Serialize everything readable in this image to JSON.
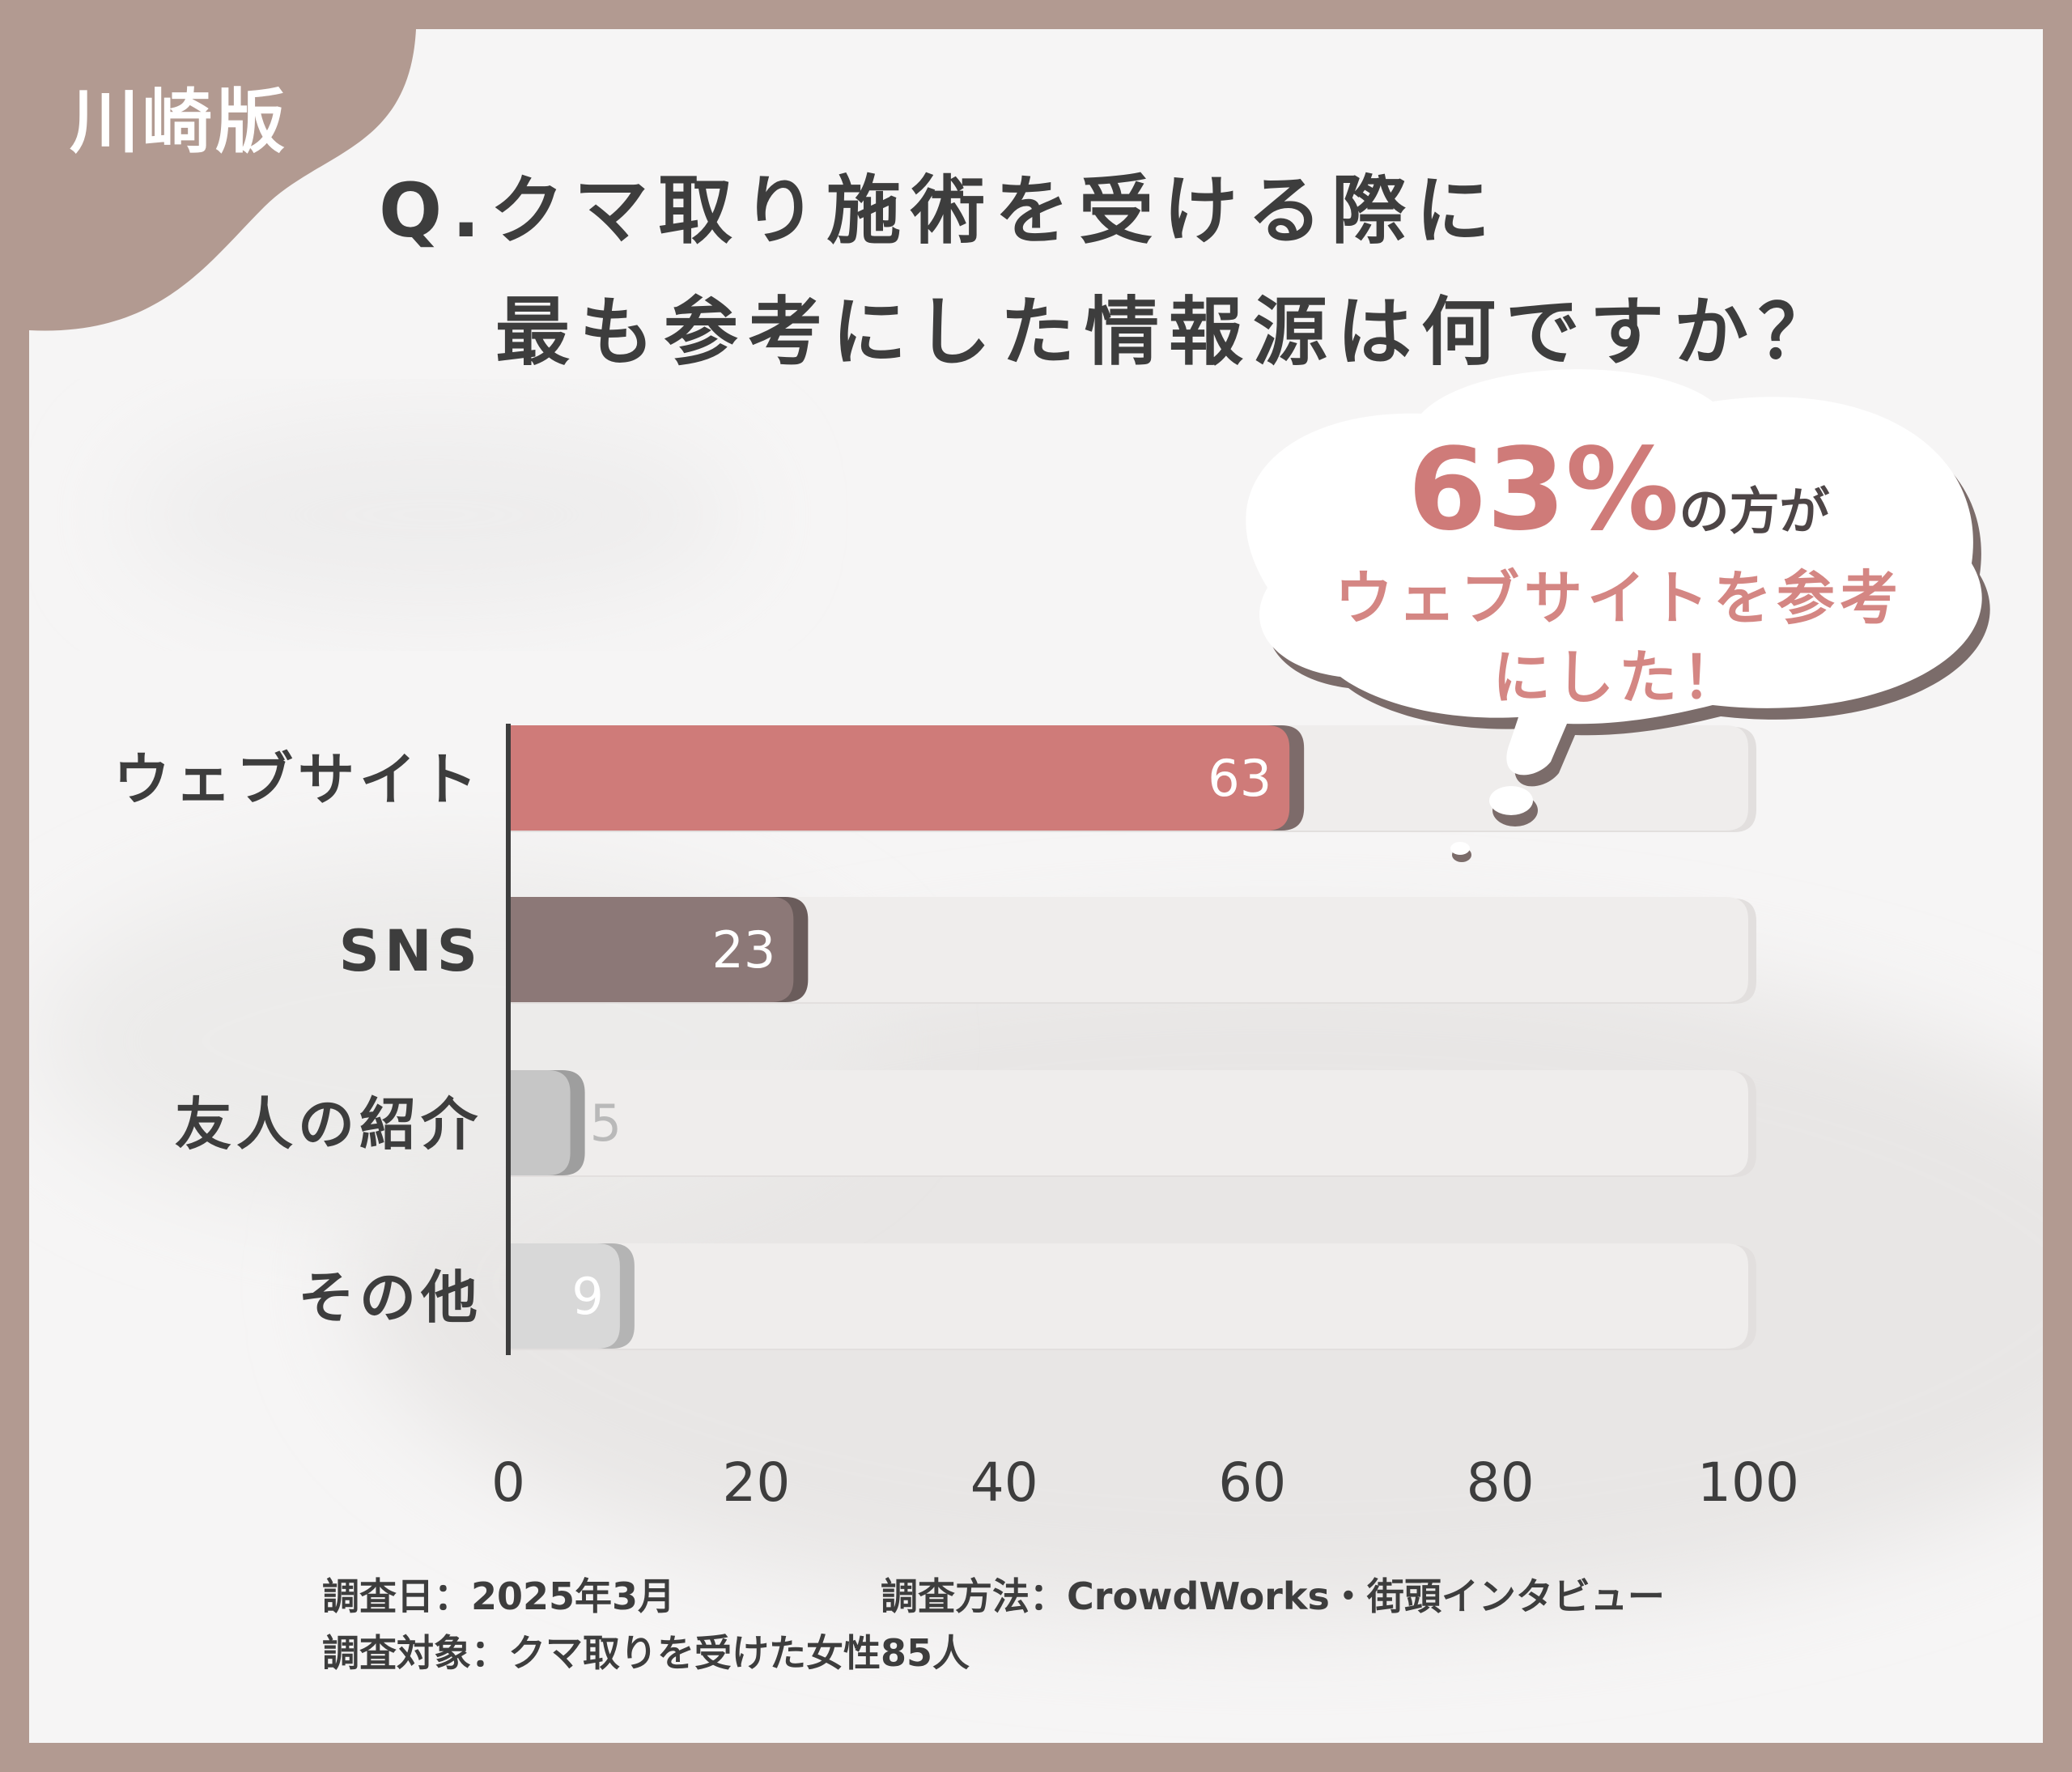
{
  "badge": {
    "label": "川崎版"
  },
  "question": {
    "line1": "Q.クマ取り施術を受ける際に",
    "line2": "最も参考にした情報源は何ですか？"
  },
  "callout": {
    "percent": "63%",
    "suffix": "の方が",
    "line2": "ウェブサイトを参考",
    "line3": "にした！"
  },
  "chart_data": {
    "type": "bar",
    "orientation": "horizontal",
    "categories": [
      "ウェブサイト",
      "SNS",
      "友人の紹介",
      "その他"
    ],
    "values": [
      63,
      23,
      5,
      9
    ],
    "xlim": [
      0,
      100
    ],
    "xticks": [
      "0",
      "20",
      "40",
      "60",
      "80",
      "100"
    ],
    "colors": [
      "#cf7b79",
      "#8c7877",
      "#c6c6c6",
      "#d8d8d8"
    ],
    "shadow_colors": [
      "#7d6b6a",
      "#6a5c5b",
      "#9e9e9e",
      "#b4b4b4"
    ],
    "label_colors": [
      "#ffffff",
      "#ffffff",
      "#b9b9b9",
      "#ffffff"
    ],
    "track_color": "#efedec",
    "grid": false
  },
  "footer": {
    "date": "調査日：2025年3月",
    "method": "調査方法：CrowdWorks・街頭インタビュー",
    "target": "調査対象：クマ取りを受けた女性85人"
  }
}
